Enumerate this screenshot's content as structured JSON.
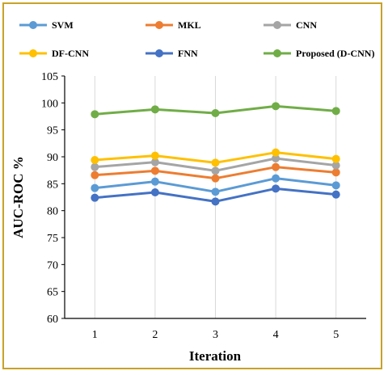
{
  "chart_data": {
    "type": "line",
    "xlabel": "Iteration",
    "ylabel": "AUC-ROC %",
    "x": [
      1,
      2,
      3,
      4,
      5
    ],
    "ylim": [
      60,
      105
    ],
    "yticks": [
      60,
      65,
      70,
      75,
      80,
      85,
      90,
      95,
      100,
      105
    ],
    "grid": "vertical",
    "legend_position": "top",
    "series": [
      {
        "name": "SVM",
        "color": "#5b9bd5",
        "values": [
          84.2,
          85.4,
          83.5,
          86.0,
          84.7
        ]
      },
      {
        "name": "MKL",
        "color": "#ed7d31",
        "values": [
          86.6,
          87.4,
          86.0,
          88.1,
          87.1
        ]
      },
      {
        "name": "CNN",
        "color": "#a5a5a5",
        "values": [
          88.1,
          89.0,
          87.4,
          89.7,
          88.4
        ]
      },
      {
        "name": "DF-CNN",
        "color": "#ffc000",
        "values": [
          89.4,
          90.2,
          88.9,
          90.8,
          89.6
        ]
      },
      {
        "name": "FNN",
        "color": "#4472c4",
        "values": [
          82.4,
          83.4,
          81.7,
          84.1,
          83.0
        ]
      },
      {
        "name": "Proposed (D-CNN)",
        "color": "#70ad47",
        "values": [
          97.9,
          98.8,
          98.1,
          99.4,
          98.5
        ]
      }
    ]
  }
}
